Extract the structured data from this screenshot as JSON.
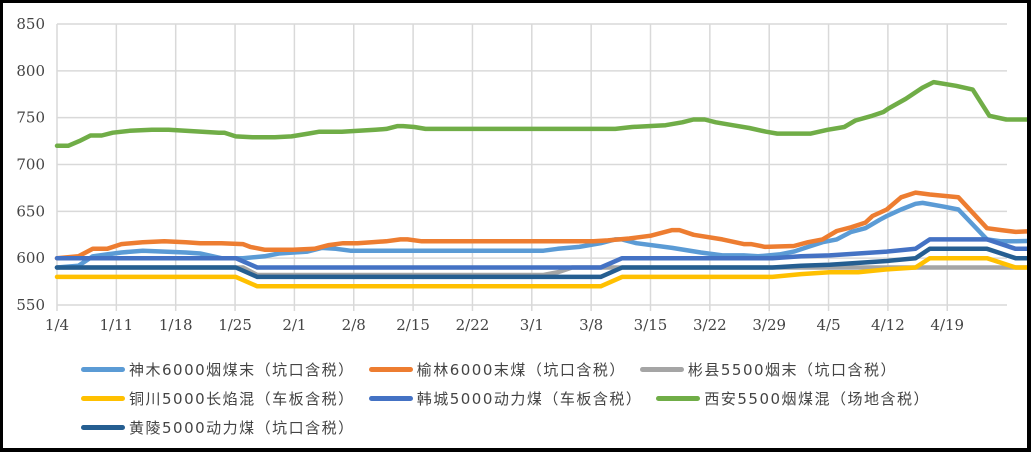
{
  "chart_data": {
    "type": "line",
    "title": "",
    "xlabel": "",
    "ylabel": "",
    "ylim": [
      550,
      850
    ],
    "yticks": [
      550,
      600,
      650,
      700,
      750,
      800,
      850
    ],
    "xticks": [
      "1/4",
      "1/11",
      "1/18",
      "1/25",
      "2/1",
      "2/8",
      "2/15",
      "2/22",
      "3/1",
      "3/8",
      "3/15",
      "3/22",
      "3/29",
      "4/5",
      "4/12",
      "4/19"
    ],
    "grid": true,
    "legend_position": "bottom",
    "x_day_offsets_note": "days since 1/4",
    "series": [
      {
        "name": "神木6000烟煤末（坑口含税）",
        "color": "#5B9BD5",
        "points": [
          [
            0,
            590
          ],
          [
            3,
            592
          ],
          [
            5,
            602
          ],
          [
            7,
            604
          ],
          [
            9,
            606
          ],
          [
            12,
            608
          ],
          [
            15,
            607
          ],
          [
            18,
            606
          ],
          [
            20,
            605
          ],
          [
            23,
            600
          ],
          [
            26,
            600
          ],
          [
            29,
            602
          ],
          [
            31,
            605
          ],
          [
            35,
            607
          ],
          [
            37,
            611
          ],
          [
            39,
            610
          ],
          [
            41,
            608
          ],
          [
            44,
            608
          ],
          [
            49,
            608
          ],
          [
            56,
            608
          ],
          [
            63,
            608
          ],
          [
            68,
            608
          ],
          [
            70,
            610
          ],
          [
            73,
            612
          ],
          [
            76,
            616
          ],
          [
            78,
            620
          ],
          [
            79,
            620
          ],
          [
            81,
            616
          ],
          [
            86,
            611
          ],
          [
            90,
            606
          ],
          [
            93,
            603
          ],
          [
            96,
            603
          ],
          [
            98,
            602
          ],
          [
            101,
            604
          ],
          [
            103,
            607
          ],
          [
            105,
            612
          ],
          [
            107,
            617
          ],
          [
            109,
            620
          ],
          [
            111,
            628
          ],
          [
            113,
            632
          ],
          [
            115,
            641
          ],
          [
            116,
            645
          ],
          [
            118,
            652
          ],
          [
            120,
            658
          ],
          [
            121,
            659
          ],
          [
            124,
            655
          ],
          [
            126,
            652
          ],
          [
            130,
            620
          ],
          [
            132,
            618
          ],
          [
            134,
            618
          ],
          [
            138,
            619
          ],
          [
            140,
            620
          ],
          [
            143,
            626
          ],
          [
            145,
            628
          ],
          [
            149,
            626
          ],
          [
            152,
            624
          ],
          [
            158,
            623
          ],
          [
            160,
            622
          ]
        ]
      },
      {
        "name": "榆林6000末煤（坑口含税）",
        "color": "#ED7D31",
        "points": [
          [
            0,
            600
          ],
          [
            3,
            602
          ],
          [
            5,
            610
          ],
          [
            7,
            610
          ],
          [
            9,
            615
          ],
          [
            12,
            617
          ],
          [
            15,
            618
          ],
          [
            18,
            617
          ],
          [
            20,
            616
          ],
          [
            23,
            616
          ],
          [
            26,
            615
          ],
          [
            27,
            612
          ],
          [
            29,
            609
          ],
          [
            33,
            609
          ],
          [
            36,
            610
          ],
          [
            38,
            614
          ],
          [
            40,
            616
          ],
          [
            42,
            616
          ],
          [
            44,
            617
          ],
          [
            46,
            618
          ],
          [
            48,
            620
          ],
          [
            49,
            620
          ],
          [
            51,
            618
          ],
          [
            55,
            618
          ],
          [
            63,
            618
          ],
          [
            70,
            618
          ],
          [
            75,
            618
          ],
          [
            77,
            619
          ],
          [
            80,
            621
          ],
          [
            83,
            624
          ],
          [
            86,
            630
          ],
          [
            87,
            630
          ],
          [
            89,
            625
          ],
          [
            93,
            620
          ],
          [
            96,
            615
          ],
          [
            97,
            615
          ],
          [
            99,
            612
          ],
          [
            103,
            613
          ],
          [
            105,
            617
          ],
          [
            107,
            620
          ],
          [
            109,
            629
          ],
          [
            111,
            633
          ],
          [
            113,
            638
          ],
          [
            114,
            645
          ],
          [
            116,
            652
          ],
          [
            118,
            665
          ],
          [
            120,
            670
          ],
          [
            122,
            668
          ],
          [
            126,
            665
          ],
          [
            130,
            632
          ],
          [
            132,
            630
          ],
          [
            134,
            628
          ],
          [
            140,
            630
          ],
          [
            143,
            636
          ],
          [
            145,
            638
          ],
          [
            149,
            637
          ],
          [
            152,
            635
          ],
          [
            158,
            634
          ],
          [
            160,
            634
          ]
        ]
      },
      {
        "name": "彬县5500烟末（坑口含税）",
        "color": "#A5A5A5",
        "points": [
          [
            0,
            590
          ],
          [
            26,
            590
          ],
          [
            28,
            582
          ],
          [
            68,
            582
          ],
          [
            70,
            585
          ],
          [
            72,
            590
          ],
          [
            160,
            590
          ]
        ]
      },
      {
        "name": "铜川5000长焰混（车板含税）",
        "color": "#FFC000",
        "points": [
          [
            0,
            580
          ],
          [
            25,
            580
          ],
          [
            28,
            570
          ],
          [
            76,
            570
          ],
          [
            79,
            580
          ],
          [
            100,
            580
          ],
          [
            104,
            583
          ],
          [
            108,
            585
          ],
          [
            112,
            585
          ],
          [
            116,
            588
          ],
          [
            120,
            590
          ],
          [
            122,
            600
          ],
          [
            130,
            600
          ],
          [
            134,
            590
          ],
          [
            140,
            590
          ],
          [
            143,
            580
          ],
          [
            160,
            580
          ]
        ]
      },
      {
        "name": "韩城5000动力煤（车板含税）",
        "color": "#4472C4",
        "points": [
          [
            0,
            600
          ],
          [
            25,
            600
          ],
          [
            28,
            590
          ],
          [
            76,
            590
          ],
          [
            79,
            600
          ],
          [
            100,
            600
          ],
          [
            104,
            602
          ],
          [
            108,
            603
          ],
          [
            112,
            605
          ],
          [
            116,
            607
          ],
          [
            120,
            610
          ],
          [
            122,
            620
          ],
          [
            130,
            620
          ],
          [
            134,
            610
          ],
          [
            140,
            610
          ],
          [
            143,
            600
          ],
          [
            160,
            600
          ]
        ]
      },
      {
        "name": "西安5500烟煤混（场地含税）",
        "color": "#70AD47",
        "points": [
          [
            0,
            720
          ],
          [
            2,
            720
          ],
          [
            4,
            725
          ],
          [
            6,
            731
          ],
          [
            8,
            731
          ],
          [
            10,
            734
          ],
          [
            13,
            736
          ],
          [
            17,
            737
          ],
          [
            20,
            737
          ],
          [
            23,
            736
          ],
          [
            26,
            735
          ],
          [
            29,
            734
          ],
          [
            30,
            734
          ],
          [
            32,
            730
          ],
          [
            35,
            729
          ],
          [
            39,
            729
          ],
          [
            42,
            730
          ],
          [
            45,
            733
          ],
          [
            47,
            735
          ],
          [
            51,
            735
          ],
          [
            54,
            736
          ],
          [
            57,
            737
          ],
          [
            59,
            738
          ],
          [
            61,
            741
          ],
          [
            62,
            741
          ],
          [
            64,
            740
          ],
          [
            66,
            738
          ],
          [
            70,
            738
          ],
          [
            84,
            738
          ],
          [
            98,
            738
          ],
          [
            100,
            738
          ],
          [
            103,
            740
          ],
          [
            106,
            741
          ],
          [
            109,
            742
          ],
          [
            112,
            745
          ],
          [
            114,
            748
          ],
          [
            116,
            748
          ],
          [
            118,
            745
          ],
          [
            121,
            742
          ],
          [
            124,
            739
          ],
          [
            127,
            735
          ],
          [
            129,
            733
          ],
          [
            132,
            733
          ],
          [
            135,
            733
          ],
          [
            138,
            737
          ],
          [
            141,
            740
          ],
          [
            143,
            747
          ],
          [
            146,
            752
          ],
          [
            148,
            756
          ],
          [
            149,
            760
          ],
          [
            152,
            770
          ],
          [
            155,
            782
          ],
          [
            157,
            788
          ],
          [
            161,
            784
          ],
          [
            164,
            780
          ],
          [
            167,
            752
          ],
          [
            170,
            748
          ],
          [
            174,
            748
          ],
          [
            178,
            749
          ],
          [
            180,
            750
          ],
          [
            183,
            756
          ],
          [
            186,
            757
          ],
          [
            189,
            755
          ],
          [
            193,
            754
          ],
          [
            197,
            753
          ],
          [
            201,
            753
          ],
          [
            205,
            752
          ]
        ]
      },
      {
        "name": "黄陵5000动力煤（坑口含税）",
        "color": "#255E91",
        "points": [
          [
            0,
            590
          ],
          [
            25,
            590
          ],
          [
            28,
            580
          ],
          [
            76,
            580
          ],
          [
            79,
            590
          ],
          [
            100,
            590
          ],
          [
            104,
            592
          ],
          [
            108,
            593
          ],
          [
            112,
            595
          ],
          [
            116,
            597
          ],
          [
            120,
            600
          ],
          [
            122,
            610
          ],
          [
            130,
            610
          ],
          [
            134,
            600
          ],
          [
            140,
            600
          ],
          [
            143,
            590
          ],
          [
            160,
            590
          ]
        ]
      }
    ]
  },
  "legend": {
    "rows": [
      [
        0,
        1,
        2
      ],
      [
        3,
        4,
        5
      ],
      [
        6
      ]
    ]
  }
}
